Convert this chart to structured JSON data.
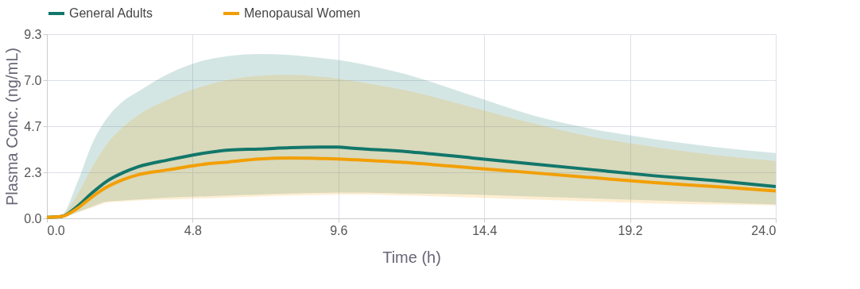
{
  "chart_data": {
    "type": "line",
    "xlabel": "Time (h)",
    "ylabel": "Plasma Conc. (ng/mL)",
    "x": [
      0,
      0.5,
      1,
      1.5,
      2,
      2.5,
      3,
      4,
      5,
      6,
      7,
      8,
      9,
      9.6,
      10,
      12,
      14,
      16,
      18,
      20,
      22,
      24
    ],
    "series": [
      {
        "name": "General Adults",
        "color": "#12776a",
        "values": [
          0.05,
          0.1,
          0.6,
          1.3,
          1.9,
          2.3,
          2.6,
          2.95,
          3.25,
          3.45,
          3.5,
          3.57,
          3.6,
          3.6,
          3.55,
          3.35,
          3.05,
          2.75,
          2.45,
          2.15,
          1.9,
          1.6
        ],
        "lower": [
          0,
          0.05,
          0.3,
          0.6,
          0.85,
          0.9,
          0.95,
          1.05,
          1.1,
          1.15,
          1.2,
          1.25,
          1.28,
          1.3,
          1.3,
          1.25,
          1.2,
          1.1,
          1.0,
          0.9,
          0.8,
          0.7
        ],
        "upper": [
          0.05,
          0.2,
          1.8,
          3.8,
          5.1,
          5.9,
          6.4,
          7.3,
          7.9,
          8.2,
          8.3,
          8.25,
          8.1,
          8.0,
          7.9,
          7.2,
          6.2,
          5.2,
          4.5,
          4.0,
          3.6,
          3.3
        ]
      },
      {
        "name": "Menopausal Women",
        "color": "#f29f05",
        "values": [
          0.05,
          0.1,
          0.5,
          1.1,
          1.6,
          1.95,
          2.2,
          2.45,
          2.7,
          2.85,
          3.0,
          3.05,
          3.02,
          3.0,
          2.97,
          2.8,
          2.55,
          2.3,
          2.05,
          1.8,
          1.6,
          1.38
        ],
        "lower": [
          0,
          0.05,
          0.3,
          0.55,
          0.8,
          0.85,
          0.9,
          0.95,
          1.0,
          1.05,
          1.1,
          1.15,
          1.18,
          1.2,
          1.2,
          1.15,
          1.05,
          0.95,
          0.85,
          0.75,
          0.7,
          0.65
        ],
        "upper": [
          0.05,
          0.15,
          1.2,
          2.6,
          3.8,
          4.6,
          5.2,
          6.0,
          6.6,
          7.0,
          7.2,
          7.25,
          7.15,
          7.05,
          6.95,
          6.4,
          5.6,
          4.8,
          4.1,
          3.6,
          3.2,
          2.9
        ]
      }
    ],
    "xlim": [
      0,
      24
    ],
    "xticks": [
      {
        "value": 0,
        "label": "0.0"
      },
      4.8,
      9.6,
      14.4,
      19.2,
      {
        "value": 24,
        "label": "24.0"
      }
    ],
    "ylim": [
      0,
      9.3
    ],
    "yticks": [
      {
        "value": 0,
        "label": "0.0"
      },
      {
        "value": 2.325,
        "label": "2.3"
      },
      {
        "value": 4.65,
        "label": "4.7"
      },
      {
        "value": 6.975,
        "label": "7.0"
      },
      9.3
    ],
    "grid": true,
    "legend": "top left",
    "marker": "none",
    "line_style": "solid"
  }
}
